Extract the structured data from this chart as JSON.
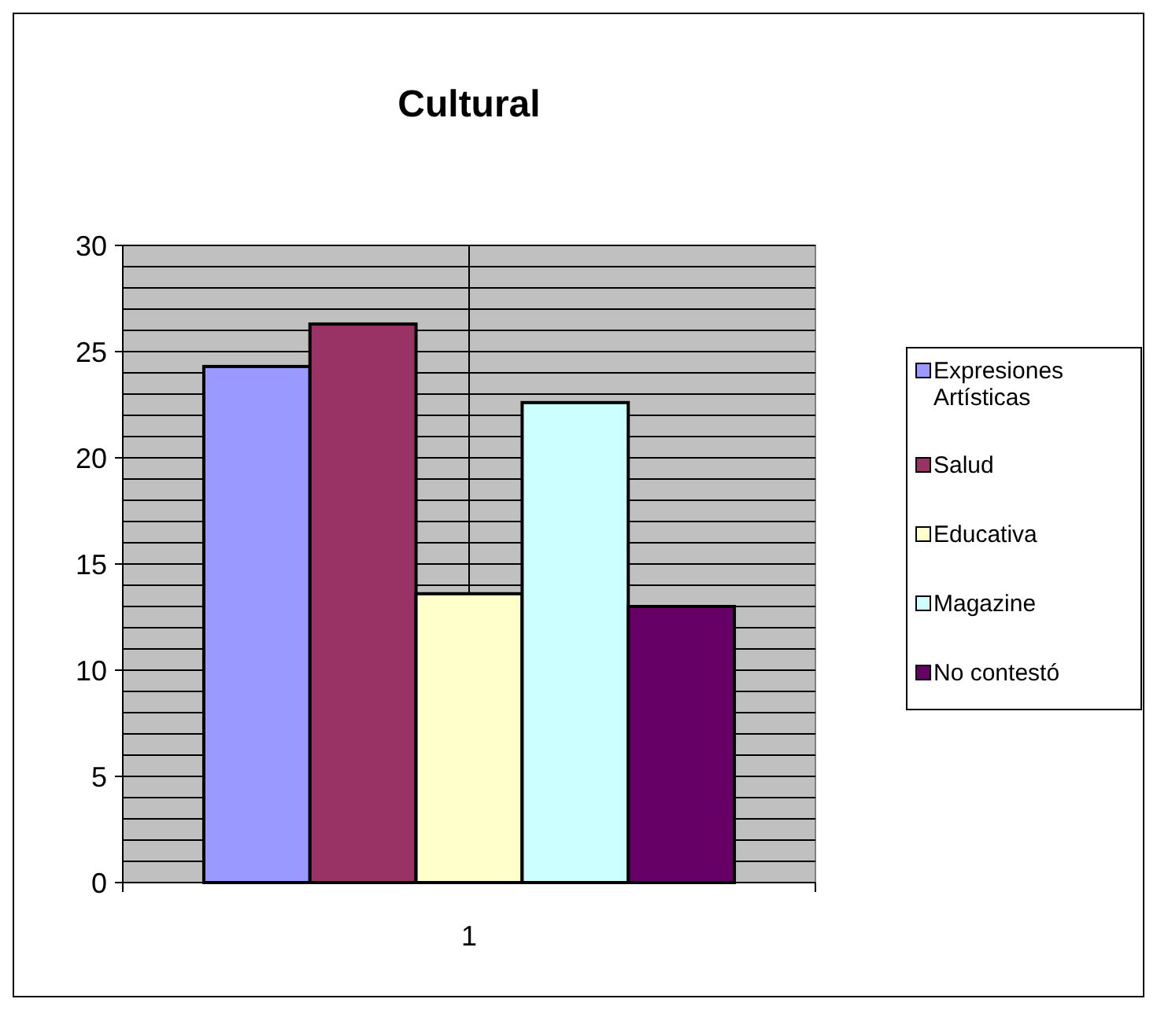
{
  "chart_data": {
    "type": "bar",
    "title": "Cultural",
    "categories": [
      "1"
    ],
    "series": [
      {
        "name": "Expresiones Artísticas",
        "color": "#9999ff",
        "values": [
          24.3
        ]
      },
      {
        "name": "Salud",
        "color": "#993366",
        "values": [
          26.3
        ]
      },
      {
        "name": "Educativa",
        "color": "#ffffcc",
        "values": [
          13.6
        ]
      },
      {
        "name": "Magazine",
        "color": "#ccffff",
        "values": [
          22.6
        ]
      },
      {
        "name": "No contestó",
        "color": "#660066",
        "values": [
          13.0
        ]
      }
    ],
    "ylim": [
      0,
      30
    ],
    "yticks": [
      0,
      {
        "value": 1,
        "label": null
      },
      {
        "value": 2,
        "label": null
      },
      {
        "value": 3,
        "label": null
      },
      {
        "value": 4,
        "label": null
      },
      5,
      {
        "value": 6,
        "label": null
      },
      {
        "value": 7,
        "label": null
      },
      {
        "value": 8,
        "label": null
      },
      {
        "value": 9,
        "label": null
      },
      10,
      {
        "value": 11,
        "label": null
      },
      {
        "value": 12,
        "label": null
      },
      {
        "value": 13,
        "label": null
      },
      {
        "value": 14,
        "label": null
      },
      15,
      {
        "value": 16,
        "label": null
      },
      {
        "value": 17,
        "label": null
      },
      {
        "value": 18,
        "label": null
      },
      {
        "value": 19,
        "label": null
      },
      20,
      {
        "value": 21,
        "label": null
      },
      {
        "value": 22,
        "label": null
      },
      {
        "value": 23,
        "label": null
      },
      {
        "value": 24,
        "label": null
      },
      25,
      {
        "value": 26,
        "label": null
      },
      {
        "value": 27,
        "label": null
      },
      {
        "value": 28,
        "label": null
      },
      {
        "value": 29,
        "label": null
      },
      30
    ],
    "grid": true,
    "legend": "right"
  }
}
